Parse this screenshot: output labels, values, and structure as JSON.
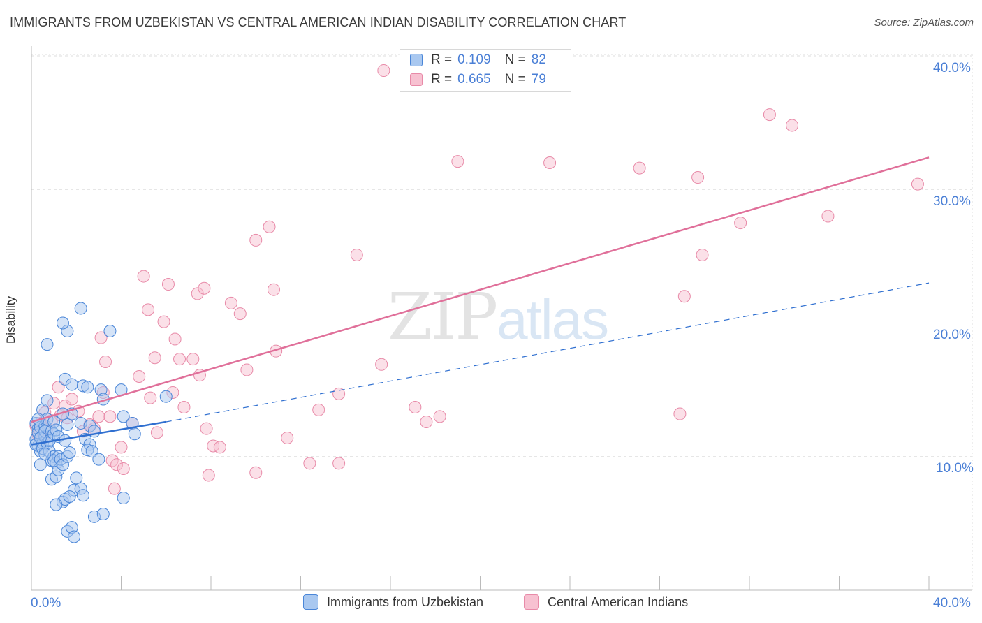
{
  "title": "IMMIGRANTS FROM UZBEKISTAN VS CENTRAL AMERICAN INDIAN DISABILITY CORRELATION CHART",
  "source": "Source: ZipAtlas.com",
  "watermark": {
    "zip": "ZIP",
    "atlas": "atlas"
  },
  "legend_top": {
    "rows": [
      {
        "r_label": "R =",
        "r_value": "0.109",
        "n_label": "N =",
        "n_value": "82"
      },
      {
        "r_label": "R =",
        "r_value": "0.665",
        "n_label": "N =",
        "n_value": "79"
      }
    ]
  },
  "legend_bottom": [
    "Immigrants from Uzbekistan",
    "Central American Indians"
  ],
  "colors": {
    "blue_fill": "#a9c8f0",
    "blue_stroke": "#4a86d8",
    "blue_line": "#2f6fd0",
    "pink_fill": "#f7c1d1",
    "pink_stroke": "#e88aa8",
    "pink_line": "#e0709a",
    "accent_text": "#4a7fd6",
    "grid": "#dddddd"
  },
  "chart_data": {
    "type": "scatter",
    "title": "IMMIGRANTS FROM UZBEKISTAN VS CENTRAL AMERICAN INDIAN DISABILITY CORRELATION CHART",
    "xlabel": "",
    "ylabel": "Disability",
    "xlim": [
      0,
      40
    ],
    "ylim": [
      0,
      41
    ],
    "x_tick_labels": [
      "0.0%",
      "40.0%"
    ],
    "y_ticks": [
      10,
      20,
      30,
      40
    ],
    "y_tick_labels": [
      "10.0%",
      "20.0%",
      "30.0%",
      "40.0%"
    ],
    "grid": true,
    "series": [
      {
        "name": "Immigrants from Uzbekistan",
        "color": "blue",
        "R": 0.109,
        "N": 82,
        "trend_solid": {
          "x": [
            0.0,
            6.0
          ],
          "y": [
            10.9,
            12.6
          ]
        },
        "trend_dashed": {
          "x": [
            6.0,
            40.0
          ],
          "y": [
            12.6,
            23.0
          ]
        },
        "points": [
          [
            0.2,
            12.5
          ],
          [
            0.3,
            12.1
          ],
          [
            0.2,
            11.3
          ],
          [
            0.3,
            10.8
          ],
          [
            0.4,
            10.4
          ],
          [
            0.2,
            10.9
          ],
          [
            0.3,
            11.8
          ],
          [
            0.4,
            12.2
          ],
          [
            0.5,
            11.0
          ],
          [
            0.6,
            11.5
          ],
          [
            0.5,
            10.6
          ],
          [
            0.4,
            9.4
          ],
          [
            0.5,
            13.5
          ],
          [
            0.6,
            12.3
          ],
          [
            0.7,
            12.8
          ],
          [
            0.6,
            11.9
          ],
          [
            0.7,
            11.0
          ],
          [
            0.8,
            10.4
          ],
          [
            0.9,
            9.7
          ],
          [
            1.0,
            10.0
          ],
          [
            1.1,
            9.5
          ],
          [
            1.2,
            10.0
          ],
          [
            0.9,
            11.9
          ],
          [
            1.0,
            12.6
          ],
          [
            0.7,
            14.2
          ],
          [
            0.8,
            11.2
          ],
          [
            1.0,
            11.7
          ],
          [
            1.1,
            12.0
          ],
          [
            1.2,
            11.5
          ],
          [
            0.9,
            8.3
          ],
          [
            1.1,
            8.5
          ],
          [
            1.2,
            9.0
          ],
          [
            1.0,
            9.7
          ],
          [
            1.3,
            9.8
          ],
          [
            1.4,
            9.4
          ],
          [
            1.6,
            10.0
          ],
          [
            1.7,
            10.3
          ],
          [
            1.5,
            11.2
          ],
          [
            1.6,
            12.4
          ],
          [
            1.8,
            13.2
          ],
          [
            1.4,
            13.2
          ],
          [
            1.5,
            15.8
          ],
          [
            1.8,
            15.4
          ],
          [
            2.3,
            15.3
          ],
          [
            2.5,
            15.2
          ],
          [
            3.1,
            15.0
          ],
          [
            3.2,
            14.3
          ],
          [
            2.2,
            12.5
          ],
          [
            2.4,
            11.3
          ],
          [
            2.6,
            10.9
          ],
          [
            2.6,
            12.3
          ],
          [
            2.8,
            11.9
          ],
          [
            2.5,
            10.5
          ],
          [
            2.7,
            10.4
          ],
          [
            3.0,
            9.8
          ],
          [
            2.0,
            8.4
          ],
          [
            1.9,
            7.5
          ],
          [
            2.2,
            7.6
          ],
          [
            2.3,
            7.1
          ],
          [
            1.4,
            6.6
          ],
          [
            1.5,
            6.8
          ],
          [
            1.7,
            7.0
          ],
          [
            1.1,
            6.4
          ],
          [
            1.6,
            4.4
          ],
          [
            1.8,
            4.7
          ],
          [
            1.9,
            4.0
          ],
          [
            2.8,
            5.5
          ],
          [
            3.2,
            5.7
          ],
          [
            4.1,
            6.9
          ],
          [
            4.1,
            13.0
          ],
          [
            4.5,
            12.5
          ],
          [
            4.6,
            11.7
          ],
          [
            4.0,
            15.0
          ],
          [
            6.0,
            14.5
          ],
          [
            3.5,
            19.4
          ],
          [
            1.6,
            19.4
          ],
          [
            1.4,
            20.0
          ],
          [
            2.2,
            21.1
          ],
          [
            0.7,
            18.4
          ],
          [
            0.3,
            12.8
          ],
          [
            0.4,
            11.4
          ],
          [
            0.6,
            10.2
          ]
        ]
      },
      {
        "name": "Central American Indians",
        "color": "pink",
        "R": 0.665,
        "N": 79,
        "trend_solid": {
          "x": [
            0.0,
            40.0
          ],
          "y": [
            12.6,
            32.4
          ]
        },
        "points": [
          [
            0.2,
            12.3
          ],
          [
            0.3,
            11.6
          ],
          [
            0.4,
            12.5
          ],
          [
            0.5,
            11.4
          ],
          [
            0.6,
            13.3
          ],
          [
            0.7,
            12.1
          ],
          [
            0.9,
            12.7
          ],
          [
            1.0,
            14.0
          ],
          [
            1.2,
            15.2
          ],
          [
            1.3,
            13.1
          ],
          [
            1.5,
            13.8
          ],
          [
            1.6,
            12.9
          ],
          [
            1.8,
            14.3
          ],
          [
            2.1,
            13.4
          ],
          [
            2.3,
            11.9
          ],
          [
            2.6,
            12.4
          ],
          [
            2.8,
            12.1
          ],
          [
            3.0,
            13.0
          ],
          [
            3.2,
            14.8
          ],
          [
            3.5,
            13.0
          ],
          [
            3.1,
            18.9
          ],
          [
            3.3,
            17.1
          ],
          [
            3.6,
            9.7
          ],
          [
            3.8,
            9.4
          ],
          [
            4.0,
            10.7
          ],
          [
            4.1,
            9.1
          ],
          [
            3.7,
            7.6
          ],
          [
            4.5,
            12.5
          ],
          [
            4.8,
            16.0
          ],
          [
            5.0,
            23.5
          ],
          [
            5.2,
            21.0
          ],
          [
            5.3,
            14.4
          ],
          [
            5.6,
            11.8
          ],
          [
            5.5,
            17.4
          ],
          [
            5.9,
            20.1
          ],
          [
            6.1,
            22.9
          ],
          [
            6.3,
            14.8
          ],
          [
            6.6,
            17.3
          ],
          [
            6.4,
            18.8
          ],
          [
            6.8,
            13.7
          ],
          [
            7.2,
            17.3
          ],
          [
            7.4,
            22.2
          ],
          [
            7.7,
            22.6
          ],
          [
            7.5,
            16.1
          ],
          [
            7.8,
            12.1
          ],
          [
            7.9,
            8.6
          ],
          [
            8.1,
            10.8
          ],
          [
            8.4,
            10.7
          ],
          [
            8.9,
            21.5
          ],
          [
            9.3,
            20.7
          ],
          [
            9.6,
            16.5
          ],
          [
            10.0,
            26.2
          ],
          [
            10.0,
            8.8
          ],
          [
            10.6,
            27.2
          ],
          [
            10.8,
            22.5
          ],
          [
            10.9,
            17.9
          ],
          [
            11.4,
            11.4
          ],
          [
            12.4,
            9.5
          ],
          [
            12.8,
            13.5
          ],
          [
            13.7,
            14.7
          ],
          [
            13.7,
            9.5
          ],
          [
            14.5,
            25.1
          ],
          [
            15.6,
            16.9
          ],
          [
            15.7,
            38.9
          ],
          [
            17.1,
            13.7
          ],
          [
            17.6,
            12.6
          ],
          [
            18.2,
            13.0
          ],
          [
            19.0,
            32.1
          ],
          [
            23.1,
            32.0
          ],
          [
            27.1,
            31.6
          ],
          [
            28.9,
            13.2
          ],
          [
            29.1,
            22.0
          ],
          [
            29.7,
            30.9
          ],
          [
            29.9,
            25.1
          ],
          [
            31.6,
            27.5
          ],
          [
            32.9,
            35.6
          ],
          [
            33.9,
            34.8
          ],
          [
            35.5,
            28.0
          ],
          [
            39.5,
            30.4
          ]
        ]
      }
    ]
  }
}
